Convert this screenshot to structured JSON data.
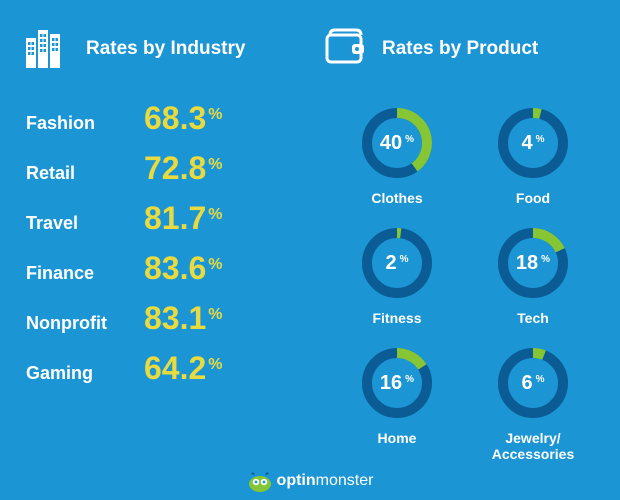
{
  "background_color": "#1b95d3",
  "text_color": "#ffffff",
  "accent_color": "#e9db3f",
  "ring_track_color": "#0b5c95",
  "ring_fill_color": "#86c635",
  "ring_thickness": 10,
  "ring_radius": 30,
  "ring_start_angle_deg": -90,
  "header_left": "Rates by Industry",
  "header_right": "Rates by Product",
  "industries": [
    {
      "label": "Fashion",
      "value": "68.3"
    },
    {
      "label": "Retail",
      "value": "72.8"
    },
    {
      "label": "Travel",
      "value": "81.7"
    },
    {
      "label": "Finance",
      "value": "83.6"
    },
    {
      "label": "Nonprofit",
      "value": "83.1"
    },
    {
      "label": "Gaming",
      "value": "64.2"
    }
  ],
  "products": [
    {
      "label": "Clothes",
      "value": 40
    },
    {
      "label": "Food",
      "value": 4
    },
    {
      "label": "Fitness",
      "value": 2
    },
    {
      "label": "Tech",
      "value": 18
    },
    {
      "label": "Home",
      "value": 16
    },
    {
      "label": "Jewelry/\nAccessories",
      "value": 6
    }
  ],
  "percent_sign": "%",
  "footer_brand_left": "optin",
  "footer_brand_right": "monster",
  "footer_mascot_body_color": "#86c635",
  "footer_mascot_horn_color": "#0b5c95"
}
